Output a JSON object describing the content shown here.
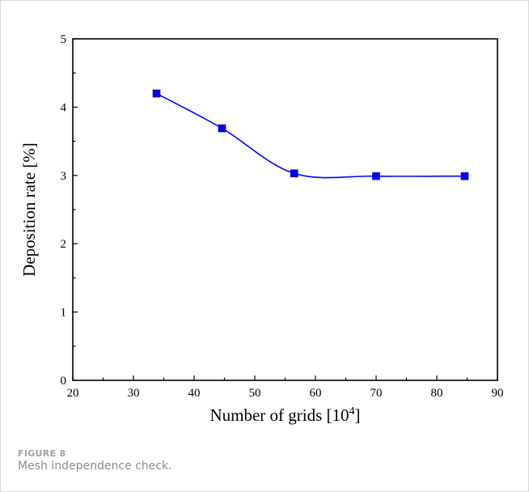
{
  "figure": {
    "label": "FIGURE 8",
    "caption": "Mesh independence check."
  },
  "chart_data": {
    "type": "line",
    "xlabel": "Number of grids [10",
    "xlabel_superscript": "4",
    "xlabel_suffix": "]",
    "ylabel": "Deposition rate [%]",
    "xlim": [
      20,
      90
    ],
    "ylim": [
      0,
      5
    ],
    "x_ticks": [
      20,
      30,
      40,
      50,
      60,
      70,
      80,
      90
    ],
    "y_ticks": [
      0,
      1,
      2,
      3,
      4,
      5
    ],
    "grid": false,
    "series": [
      {
        "color": "#0000ff",
        "marker": "square",
        "smooth": true,
        "x": [
          33.8,
          44.6,
          56.5,
          70.0,
          84.6
        ],
        "y": [
          4.2,
          3.69,
          3.03,
          2.99,
          2.99
        ]
      }
    ]
  }
}
